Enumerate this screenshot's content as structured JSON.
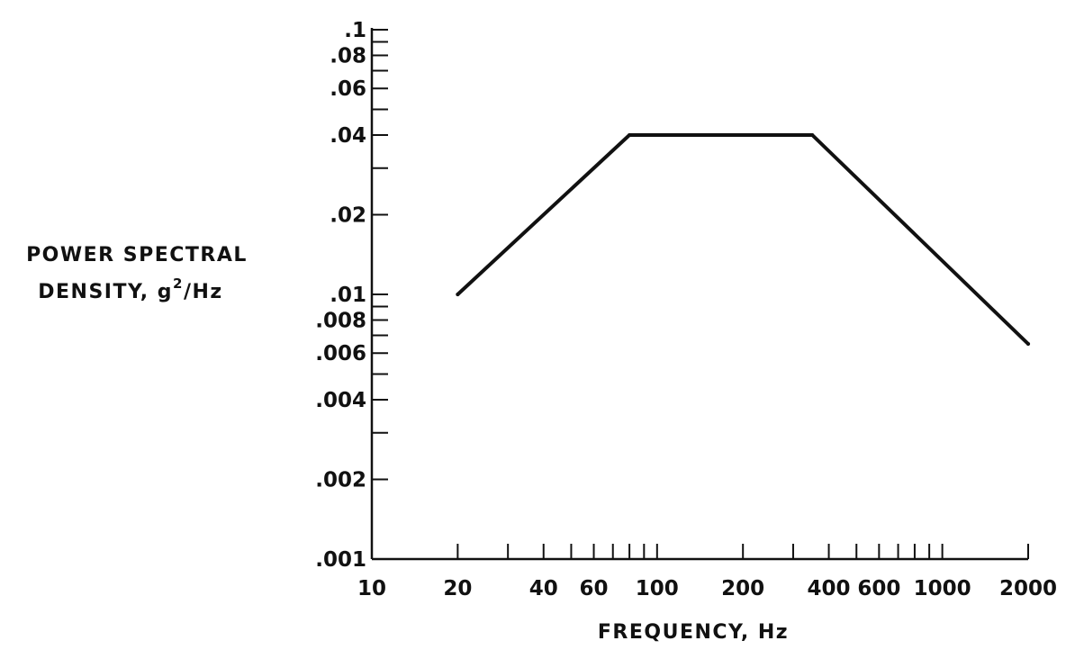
{
  "chart_data": {
    "type": "line",
    "title": "",
    "xlabel": "FREQUENCY, Hz",
    "ylabel_line1": "POWER SPECTRAL",
    "ylabel_line2_prefix": "DENSITY, g",
    "ylabel_line2_sup": "2",
    "ylabel_line2_suffix": "/Hz",
    "x_scale": "log",
    "y_scale": "log",
    "xlim": [
      10,
      2000
    ],
    "ylim": [
      0.001,
      0.1
    ],
    "grid": false,
    "x_tick_labels": [
      {
        "value": 10,
        "label": "10"
      },
      {
        "value": 20,
        "label": "20"
      },
      {
        "value": 40,
        "label": "40"
      },
      {
        "value": 60,
        "label": "60"
      },
      {
        "value": 100,
        "label": "100"
      },
      {
        "value": 200,
        "label": "200"
      },
      {
        "value": 400,
        "label": "400"
      },
      {
        "value": 600,
        "label": "600"
      },
      {
        "value": 1000,
        "label": "1000"
      },
      {
        "value": 2000,
        "label": "2000"
      }
    ],
    "x_minor_ticks": [
      20,
      30,
      40,
      50,
      60,
      70,
      80,
      90,
      100,
      200,
      300,
      400,
      500,
      600,
      700,
      800,
      900,
      1000,
      2000
    ],
    "y_tick_labels": [
      {
        "value": 0.1,
        "label": ".1"
      },
      {
        "value": 0.08,
        "label": ".08"
      },
      {
        "value": 0.06,
        "label": ".06"
      },
      {
        "value": 0.04,
        "label": ".04"
      },
      {
        "value": 0.02,
        "label": ".02"
      },
      {
        "value": 0.01,
        "label": ".01"
      },
      {
        "value": 0.008,
        "label": ".008"
      },
      {
        "value": 0.006,
        "label": ".006"
      },
      {
        "value": 0.004,
        "label": ".004"
      },
      {
        "value": 0.002,
        "label": ".002"
      },
      {
        "value": 0.001,
        "label": ".001"
      }
    ],
    "y_minor_ticks": [
      0.1,
      0.09,
      0.08,
      0.07,
      0.06,
      0.05,
      0.04,
      0.03,
      0.02,
      0.01,
      0.009,
      0.008,
      0.007,
      0.006,
      0.005,
      0.004,
      0.003,
      0.002
    ],
    "series": [
      {
        "x": [
          20,
          80,
          350,
          2000
        ],
        "y": [
          0.01,
          0.04,
          0.04,
          0.0065
        ]
      }
    ]
  }
}
